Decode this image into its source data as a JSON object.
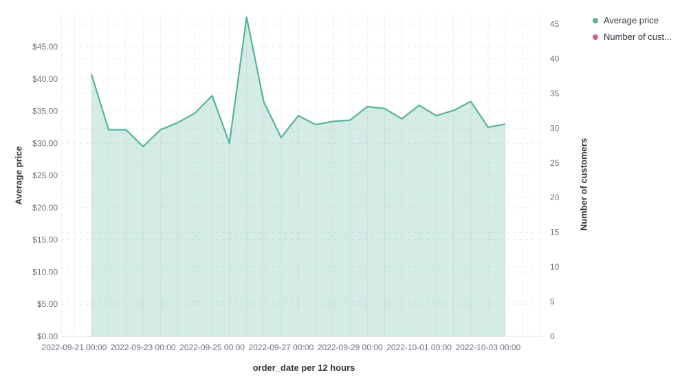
{
  "chart_data": {
    "type": "area",
    "title": "",
    "x_axis": {
      "title": "order_date per 12 hours",
      "tick_labels": [
        "2022-09-21 00:00",
        "2022-09-23 00:00",
        "2022-09-25 00:00",
        "2022-09-27 00:00",
        "2022-09-29 00:00",
        "2022-10-01 00:00",
        "2022-10-03 00:00"
      ]
    },
    "y_axis_left": {
      "title": "Average price",
      "tick_labels": [
        "$0.00",
        "$5.00",
        "$10.00",
        "$15.00",
        "$20.00",
        "$25.00",
        "$30.00",
        "$35.00",
        "$40.00",
        "$45.00"
      ],
      "tick_values": [
        0,
        5,
        10,
        15,
        20,
        25,
        30,
        35,
        40,
        45
      ],
      "range": [
        0,
        50.1
      ]
    },
    "y_axis_right": {
      "title": "Number of customers",
      "tick_labels": [
        "0",
        "5",
        "10",
        "15",
        "20",
        "25",
        "30",
        "35",
        "40",
        "45"
      ],
      "tick_values": [
        0,
        5,
        10,
        15,
        20,
        25,
        30,
        35,
        40,
        45
      ],
      "range": [
        0,
        46.4
      ]
    },
    "legend": [
      {
        "label": "Average price",
        "color": "#54B399"
      },
      {
        "label": "Number of cust...",
        "color": "#D36086"
      }
    ],
    "grid": {
      "horizontal": "dashed",
      "vertical": "solid",
      "h_color": "#e6e9ef",
      "v_color": "#eef1f5",
      "axis_line_color": "#d6dce5"
    },
    "series": [
      {
        "name": "Average price",
        "axis": "left",
        "color": "#54B399",
        "fill_opacity": 0.25,
        "x": [
          "2022-09-21 12:00",
          "2022-09-22 00:00",
          "2022-09-22 12:00",
          "2022-09-23 00:00",
          "2022-09-23 12:00",
          "2022-09-24 00:00",
          "2022-09-24 12:00",
          "2022-09-25 00:00",
          "2022-09-25 12:00",
          "2022-09-26 00:00",
          "2022-09-26 12:00",
          "2022-09-27 00:00",
          "2022-09-27 12:00",
          "2022-09-28 00:00",
          "2022-09-28 12:00",
          "2022-09-29 00:00",
          "2022-09-29 12:00",
          "2022-09-30 00:00",
          "2022-09-30 12:00",
          "2022-10-01 00:00",
          "2022-10-01 12:00",
          "2022-10-02 00:00",
          "2022-10-02 12:00",
          "2022-10-03 00:00",
          "2022-10-03 12:00"
        ],
        "values": [
          40.7,
          32.1,
          32.1,
          29.5,
          32.1,
          33.2,
          34.7,
          37.4,
          30.0,
          49.6,
          36.4,
          30.9,
          34.3,
          32.9,
          33.4,
          33.6,
          35.7,
          35.4,
          33.8,
          35.9,
          34.3,
          35.1,
          36.5,
          32.5,
          33.0
        ]
      }
    ]
  }
}
